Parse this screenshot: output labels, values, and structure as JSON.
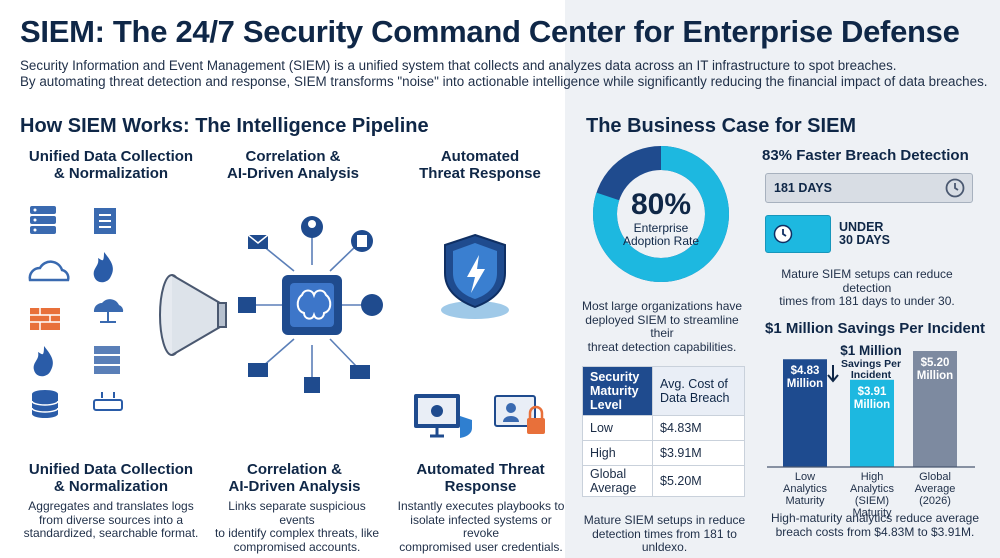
{
  "title": "SIEM: The 24/7 Security Command Center for Enterprise Defense",
  "intro": {
    "line1": "Security Information and Event Management (SIEM) is a unified system that collects and analyzes data across an IT infrastructure to spot breaches.",
    "line2": "By automating threat detection and response, SIEM transforms \"noise\" into actionable intelligence while significantly reducing the financial impact of data breaches."
  },
  "pipeline": {
    "heading": "How SIEM Works: The Intelligence Pipeline",
    "columns": [
      {
        "top": "Unified Data Collection\n& Normalization",
        "bottom": "Unified Data Collection\n& Normalization",
        "desc": "Aggregates and translates logs\nfrom diverse sources into a\nstandardized, searchable format."
      },
      {
        "top": "Correlation &\nAI-Driven Analysis",
        "bottom": "Correlation &\nAI-Driven Analysis",
        "desc": "Links separate suspicious events\nto identify complex threats, like\ncompromised accounts."
      },
      {
        "top": "Automated\nThreat Response",
        "bottom": "Automated Threat\nResponse",
        "desc": "Instantly executes playbooks to\nisolate infected systems or revoke\ncompromised user credentials."
      }
    ]
  },
  "business": {
    "heading": "The Business Case for SIEM",
    "adoption": {
      "value": "80%",
      "label": "Enterprise\nAdoption Rate",
      "percent": 80,
      "caption": "Most large organizations have\ndeployed SIEM to streamline their\nthreat detection capabilities."
    },
    "detection": {
      "heading": "83% Faster Breach Detection",
      "before": "181 DAYS",
      "after": "UNDER\n30 DAYS",
      "caption": "Mature SIEM setups can reduce detection\ntimes from 181 days to under 30."
    },
    "table": {
      "headers": [
        "Security\nMaturity\nLevel",
        "Avg. Cost of\nData Breach"
      ],
      "rows": [
        [
          "Low",
          "$4.83M"
        ],
        [
          "High",
          "$3.91M"
        ],
        [
          "Global\nAverage",
          "$5.20M"
        ]
      ],
      "caption": "Mature SIEM setups in reduce\ndetection times from 181 to unldexo."
    },
    "savings": {
      "heading": "$1 Million Savings Per Incident",
      "callout_big": "$1 Million",
      "callout_small": "Savings Per\nIncident",
      "caption": "High-maturity analytics reduce average\nbreach costs from $4.83M to $3.91M.",
      "colors": {
        "low": "#1e4b8f",
        "high": "#1db8e0",
        "global": "#7d8aa0"
      }
    }
  },
  "chart_data": {
    "type": "bar",
    "title": "$1 Million Savings Per Incident",
    "categories": [
      "Low\nAnalytics\nMaturity",
      "High\nAnalytics\n(SIEM) Maturity",
      "Global\nAverage\n(2026)"
    ],
    "values": [
      4.83,
      3.91,
      5.2
    ],
    "value_labels": [
      "$4.83\nMillion",
      "$3.91\nMillion",
      "$5.20\nMillion"
    ],
    "ylim": [
      0,
      5.2
    ]
  }
}
